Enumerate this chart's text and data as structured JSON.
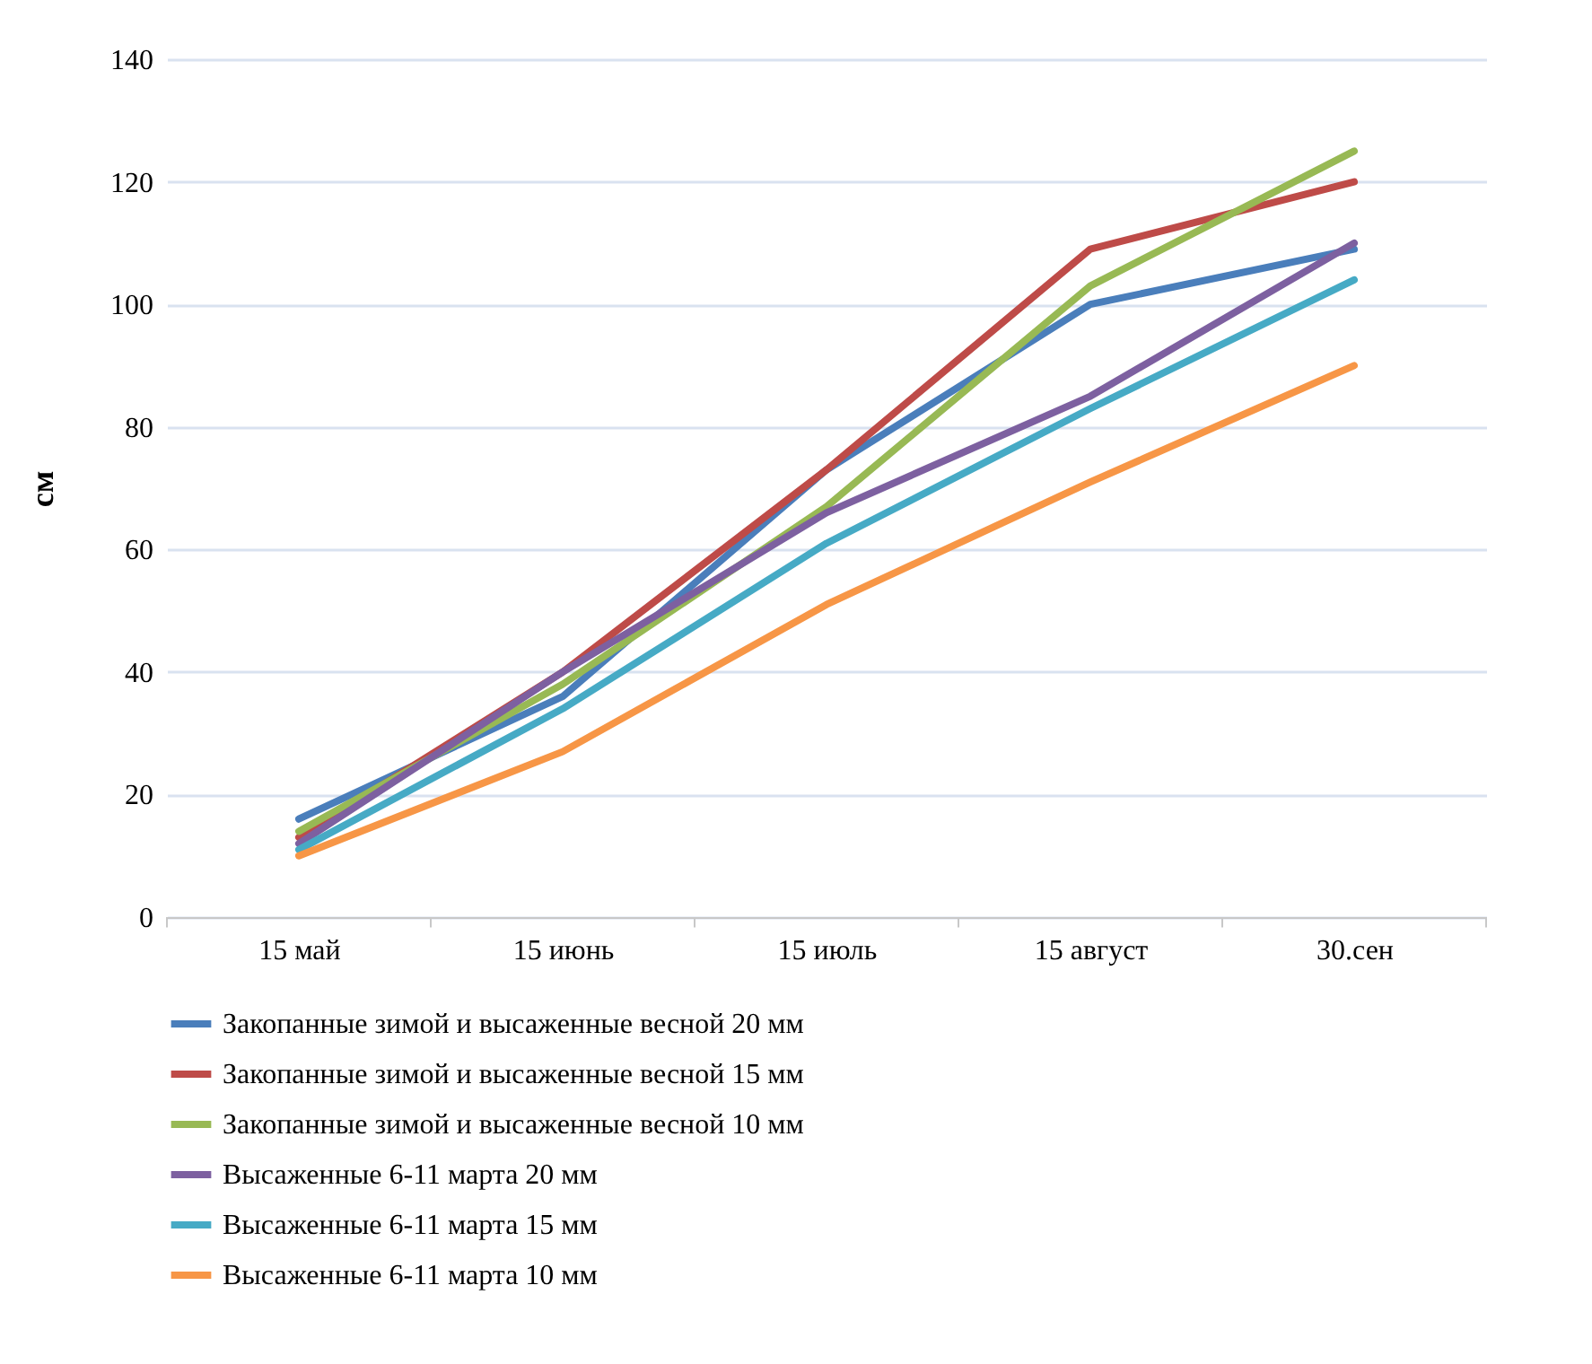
{
  "chart_data": {
    "type": "line",
    "ylabel": "см",
    "categories": [
      "15 май",
      "15 июнь",
      "15 июль",
      "15 август",
      "30.сен"
    ],
    "ylim": [
      0,
      140
    ],
    "yticks": [
      0,
      20,
      40,
      60,
      80,
      100,
      120,
      140
    ],
    "grid": "y",
    "legend": "bottom",
    "marker": "none",
    "line_style": "solid",
    "series": [
      {
        "name": "Закопанные зимой и высаженные весной 20 мм",
        "color": "#4a7ebb",
        "values": [
          16,
          36,
          73,
          100,
          109
        ]
      },
      {
        "name": "Закопанные зимой и высаженные весной 15 мм",
        "color": "#be4b48",
        "values": [
          13,
          40,
          73,
          109,
          120
        ]
      },
      {
        "name": "Закопанные зимой и высаженные весной 10 мм",
        "color": "#98b954",
        "values": [
          14,
          38,
          67,
          103,
          125
        ]
      },
      {
        "name": "Высаженные 6-11 марта 20 мм",
        "color": "#7d60a0",
        "values": [
          12,
          40,
          66,
          85,
          110
        ]
      },
      {
        "name": "Высаженные 6-11 марта 15 мм",
        "color": "#46aac5",
        "values": [
          11,
          34,
          61,
          83,
          104
        ]
      },
      {
        "name": "Высаженные 6-11 марта 10 мм",
        "color": "#f79646",
        "values": [
          10,
          27,
          51,
          71,
          90
        ]
      }
    ]
  }
}
